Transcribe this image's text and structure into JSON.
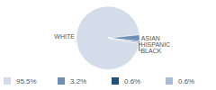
{
  "chart_data": {
    "type": "pie",
    "categories": [
      "WHITE",
      "ASIAN",
      "HISPANIC",
      "BLACK"
    ],
    "values": [
      95.5,
      3.2,
      0.6,
      0.6
    ],
    "value_labels": [
      "95.5%",
      "3.2%",
      "0.6%",
      "0.6%"
    ],
    "colors": [
      "#d3dce8",
      "#6f8fb5",
      "#234f7d",
      "#a9bcd2"
    ]
  }
}
